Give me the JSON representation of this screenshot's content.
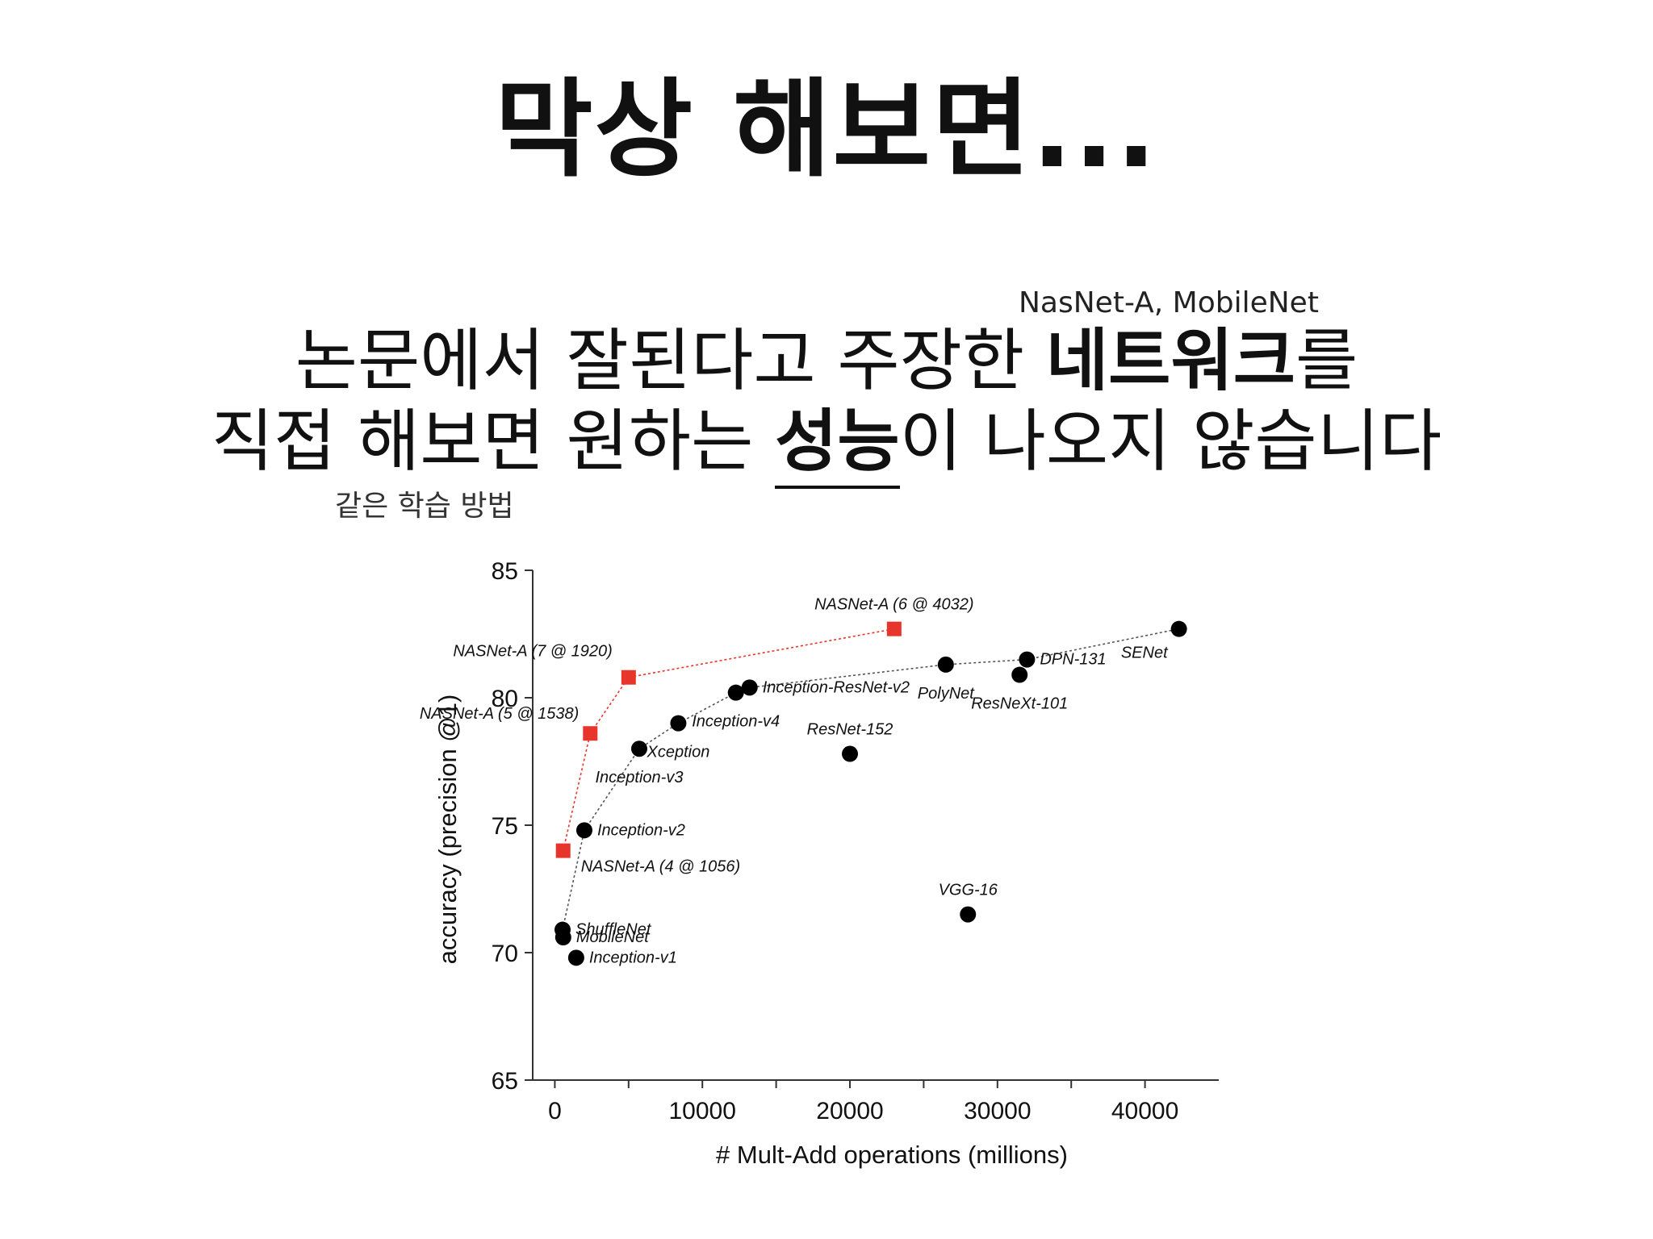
{
  "slide": {
    "title": "막상 해보면...",
    "annotation_top": "NasNet-A, MobileNet",
    "annotation_bottom": "같은 학습 방법",
    "line1": {
      "normal": "논문에서 잘된다고 주장한 ",
      "bold": "네트워크",
      "tail": "를"
    },
    "line2": {
      "normal": "직접 해보면 원하는 ",
      "bold": "성능",
      "tail": "이 나오지 않습니다"
    }
  },
  "colors": {
    "nasnet": "#e8352b",
    "baseline": "#000000"
  },
  "chart_data": {
    "type": "scatter",
    "xlabel": "# Mult-Add operations (millions)",
    "ylabel": "accuracy (precision @1)",
    "xlim": [
      -1500,
      45000
    ],
    "ylim": [
      65,
      85
    ],
    "xticks": [
      0,
      10000,
      20000,
      30000,
      40000
    ],
    "xtick_labels": [
      "0",
      "10000",
      "20000",
      "30000",
      "40000"
    ],
    "yticks": [
      65,
      70,
      75,
      80,
      85
    ],
    "ytick_labels": [
      "65",
      "70",
      "75",
      "80",
      "85"
    ],
    "grid": false,
    "series": [
      {
        "name": "NASNet-A",
        "marker": "square",
        "connected": true,
        "points": [
          {
            "label": "NASNet-A (4 @ 1056)",
            "x": 564,
            "y": 74.0,
            "label_side": "below-right"
          },
          {
            "label": "NASNet-A (5 @ 1538)",
            "x": 2400,
            "y": 78.6,
            "label_side": "left"
          },
          {
            "label": "NASNet-A (7 @ 1920)",
            "x": 5000,
            "y": 80.8,
            "label_side": "above-left"
          },
          {
            "label": "NASNet-A (6 @ 4032)",
            "x": 23000,
            "y": 82.7,
            "label_side": "above"
          }
        ]
      },
      {
        "name": "Existing models",
        "marker": "circle",
        "connected": true,
        "points": [
          {
            "label": "ShuffleNet",
            "x": 524,
            "y": 70.9,
            "label_side": "right"
          },
          {
            "label": "MobileNet",
            "x": 569,
            "y": 70.6,
            "label_side": "right"
          },
          {
            "label": "Inception-v1",
            "x": 1448,
            "y": 69.8,
            "label_side": "right"
          },
          {
            "label": "Inception-v2",
            "x": 2000,
            "y": 74.8,
            "label_side": "right"
          },
          {
            "label": "Inception-v3",
            "x": 5720,
            "y": 78.0,
            "label_side": "below"
          },
          {
            "label": "Xception",
            "x": 8370,
            "y": 79.0,
            "label_side": "below"
          },
          {
            "label": "Inception-v4",
            "x": 12270,
            "y": 80.2,
            "label_side": "below"
          },
          {
            "label": "Inception-ResNet-v2",
            "x": 13200,
            "y": 80.4,
            "label_side": "right"
          },
          {
            "label": "ResNet-152",
            "x": 20000,
            "y": 77.8,
            "label_side": "above"
          },
          {
            "label": "PolyNet",
            "x": 26500,
            "y": 81.3,
            "label_side": "below"
          },
          {
            "label": "ResNeXt-101",
            "x": 31500,
            "y": 80.9,
            "label_side": "below"
          },
          {
            "label": "DPN-131",
            "x": 32000,
            "y": 81.5,
            "label_side": "right"
          },
          {
            "label": "SENet",
            "x": 42300,
            "y": 82.7,
            "label_side": "below-left"
          },
          {
            "label": "VGG-16",
            "x": 28000,
            "y": 71.5,
            "label_side": "above"
          }
        ]
      }
    ]
  }
}
